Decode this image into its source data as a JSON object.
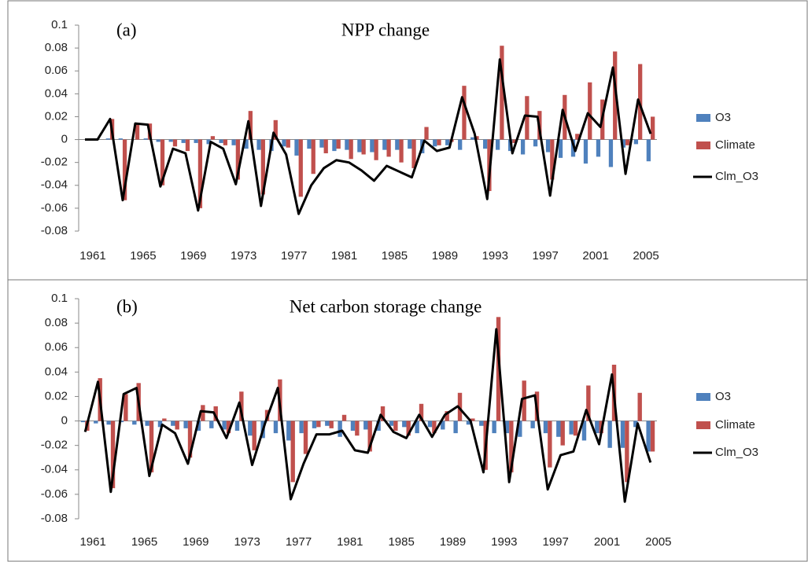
{
  "chart_data": [
    {
      "type": "bar_line",
      "panel_label": "(a)",
      "title": "NPP change",
      "legend": "right",
      "categories": [
        "1961",
        null,
        null,
        null,
        "1965",
        null,
        null,
        null,
        "1969",
        null,
        null,
        null,
        "1973",
        null,
        null,
        null,
        "1977",
        null,
        null,
        null,
        "1981",
        null,
        null,
        null,
        "1985",
        null,
        null,
        null,
        "1989",
        null,
        null,
        null,
        "1993",
        null,
        null,
        null,
        "1997",
        null,
        null,
        null,
        "2001",
        null,
        null,
        null,
        "2005",
        null
      ],
      "ylim": [
        -0.08,
        0.1
      ],
      "yticks": [
        0.1,
        0.08,
        0.06,
        0.04,
        0.02,
        0,
        -0.02,
        -0.04,
        -0.06,
        -0.08
      ],
      "series": [
        {
          "name": "O3",
          "kind": "bar",
          "color": "#4f81bd",
          "values": [
            0,
            0,
            0.001,
            0.001,
            0,
            0.001,
            -0.002,
            -0.002,
            -0.003,
            -0.003,
            -0.004,
            -0.003,
            -0.005,
            -0.008,
            -0.009,
            -0.01,
            -0.006,
            -0.014,
            -0.008,
            -0.007,
            -0.01,
            -0.009,
            -0.011,
            -0.011,
            -0.009,
            -0.009,
            -0.008,
            -0.012,
            -0.006,
            -0.005,
            -0.009,
            0.002,
            -0.008,
            -0.009,
            -0.01,
            -0.013,
            -0.006,
            -0.011,
            -0.016,
            -0.015,
            -0.021,
            -0.015,
            -0.024,
            -0.007,
            -0.004,
            -0.019
          ]
        },
        {
          "name": "Climate",
          "kind": "bar",
          "color": "#c0504d",
          "values": [
            0,
            0,
            0.018,
            -0.053,
            0.014,
            0.014,
            -0.04,
            -0.006,
            -0.01,
            -0.06,
            0.003,
            -0.005,
            -0.035,
            0.025,
            -0.048,
            0.017,
            -0.007,
            -0.05,
            -0.03,
            -0.012,
            -0.008,
            -0.017,
            -0.013,
            -0.018,
            -0.015,
            -0.02,
            -0.025,
            0.011,
            -0.005,
            -0.002,
            0.047,
            0.003,
            -0.045,
            0.082,
            -0.003,
            0.038,
            0.025,
            -0.035,
            0.039,
            0.005,
            0.05,
            0.035,
            0.077,
            -0.005,
            0.066,
            0.02
          ]
        },
        {
          "name": "Clm_O3",
          "kind": "line",
          "color": "#000000",
          "values": [
            0,
            0,
            0.018,
            -0.053,
            0.014,
            0.013,
            -0.041,
            -0.008,
            -0.012,
            -0.062,
            -0.002,
            -0.008,
            -0.039,
            0.016,
            -0.058,
            0.006,
            -0.013,
            -0.065,
            -0.04,
            -0.025,
            -0.018,
            -0.02,
            -0.027,
            -0.036,
            -0.023,
            -0.028,
            -0.033,
            -0.001,
            -0.01,
            -0.007,
            0.037,
            0.005,
            -0.052,
            0.07,
            -0.012,
            0.021,
            0.02,
            -0.049,
            0.026,
            -0.01,
            0.023,
            0.011,
            0.063,
            -0.03,
            0.035,
            0.005
          ]
        }
      ]
    },
    {
      "type": "bar_line",
      "panel_label": "(b)",
      "title": "Net carbon storage change",
      "legend": "right",
      "categories": [
        "1961",
        null,
        null,
        null,
        "1965",
        null,
        null,
        null,
        "1969",
        null,
        null,
        null,
        "1973",
        null,
        null,
        null,
        "1977",
        null,
        null,
        null,
        "1981",
        null,
        null,
        null,
        "1985",
        null,
        null,
        null,
        "1989",
        null,
        null,
        null,
        "1993",
        null,
        null,
        null,
        "1997",
        null,
        null,
        null,
        "2001",
        null,
        null,
        null,
        "2005"
      ],
      "ylim": [
        -0.08,
        0.1
      ],
      "yticks": [
        0.1,
        0.08,
        0.06,
        0.04,
        0.02,
        0,
        -0.02,
        -0.04,
        -0.06,
        -0.08
      ],
      "series": [
        {
          "name": "O3",
          "kind": "bar",
          "color": "#4f81bd",
          "values": [
            -0.001,
            -0.002,
            -0.003,
            -0.001,
            -0.003,
            -0.004,
            -0.005,
            -0.004,
            -0.006,
            -0.008,
            -0.006,
            -0.007,
            -0.008,
            -0.012,
            -0.014,
            -0.01,
            -0.016,
            -0.01,
            -0.006,
            -0.004,
            -0.013,
            -0.008,
            -0.007,
            -0.008,
            -0.004,
            -0.005,
            -0.01,
            -0.005,
            -0.007,
            -0.01,
            -0.003,
            -0.004,
            -0.01,
            -0.01,
            -0.013,
            -0.006,
            -0.01,
            -0.013,
            -0.011,
            -0.016,
            -0.01,
            -0.022,
            -0.022,
            -0.005,
            -0.025
          ]
        },
        {
          "name": "Climate",
          "kind": "bar",
          "color": "#c0504d",
          "values": [
            -0.008,
            0.035,
            -0.055,
            0.022,
            0.031,
            -0.042,
            0.002,
            -0.007,
            -0.03,
            0.013,
            0.012,
            -0.01,
            0.024,
            -0.024,
            0.009,
            0.034,
            -0.05,
            -0.027,
            -0.005,
            -0.006,
            0.005,
            -0.012,
            -0.025,
            0.012,
            -0.008,
            -0.012,
            0.014,
            -0.01,
            0.008,
            0.023,
            0.002,
            -0.04,
            0.085,
            -0.042,
            0.033,
            0.024,
            -0.038,
            -0.02,
            -0.012,
            0.029,
            -0.01,
            0.046,
            -0.05,
            0.023,
            -0.025
          ]
        },
        {
          "name": "Clm_O3",
          "kind": "line",
          "color": "#000000",
          "values": [
            -0.009,
            0.032,
            -0.058,
            0.022,
            0.027,
            -0.045,
            -0.003,
            -0.01,
            -0.035,
            0.008,
            0.007,
            -0.014,
            0.015,
            -0.036,
            -0.002,
            0.027,
            -0.064,
            -0.035,
            -0.011,
            -0.011,
            -0.008,
            -0.024,
            -0.026,
            0.005,
            -0.009,
            -0.014,
            0.005,
            -0.013,
            0.005,
            0.012,
            0,
            -0.042,
            0.075,
            -0.05,
            0.018,
            0.021,
            -0.056,
            -0.028,
            -0.025,
            0.009,
            -0.019,
            0.038,
            -0.066,
            -0.002,
            -0.034
          ]
        }
      ]
    }
  ]
}
